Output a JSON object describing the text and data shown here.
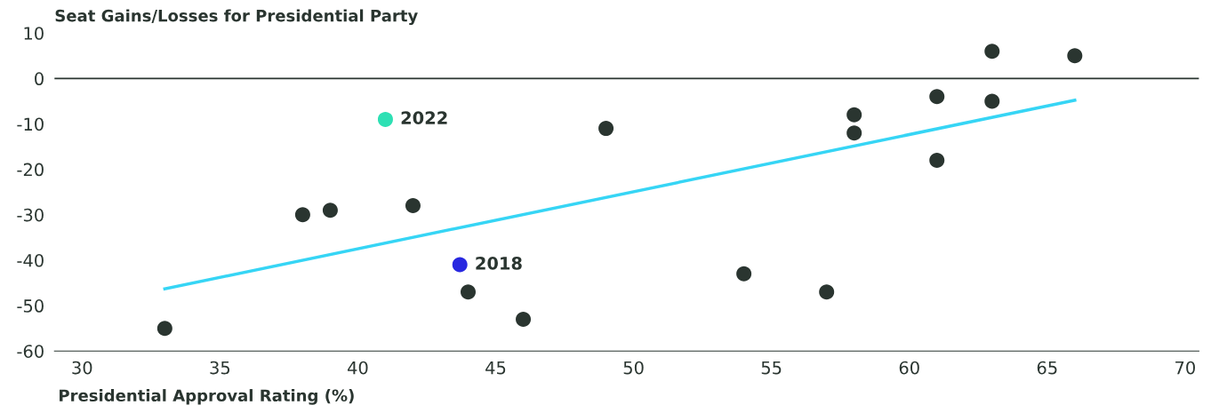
{
  "chart_data": {
    "type": "scatter",
    "ylabel": "Seat Gains/Losses for Presidential Party",
    "xlabel": "Presidential Approval Rating (%)",
    "xlim": [
      29,
      70.5
    ],
    "xticks": [
      30,
      35,
      40,
      45,
      50,
      55,
      60,
      65,
      70
    ],
    "ylim": [
      -60,
      10
    ],
    "yticks": [
      -60,
      -50,
      -40,
      -30,
      -20,
      -10,
      0,
      10
    ],
    "grid": false,
    "legend": false,
    "ref_lines": [
      {
        "axis": "y",
        "value": 0,
        "color": "#2a3530"
      }
    ],
    "series": [
      {
        "marker": "circle",
        "color": "#2a3530",
        "x": [
          33,
          38,
          39,
          42,
          44,
          46,
          49,
          54,
          57,
          58,
          58,
          61,
          61,
          63,
          63,
          66
        ],
        "values": [
          -55,
          -30,
          -29,
          -28,
          -47,
          -53,
          -11,
          -43,
          -47,
          -8,
          -12,
          -4,
          -18,
          6,
          -5,
          5
        ]
      },
      {
        "marker": "circle",
        "name": "2022",
        "color": "#2ee0b4",
        "x": [
          41
        ],
        "values": [
          -9
        ]
      },
      {
        "marker": "circle",
        "name": "2018",
        "color": "#2828e0",
        "x": [
          43.7
        ],
        "values": [
          -41
        ]
      },
      {
        "type": "line",
        "color": "#36d5f5",
        "x": [
          33,
          66
        ],
        "values": [
          -46.3,
          -4.8
        ]
      }
    ]
  }
}
